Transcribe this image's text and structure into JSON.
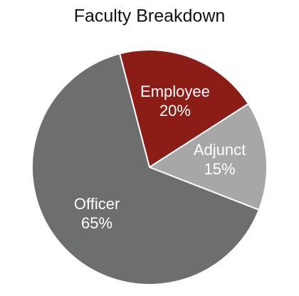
{
  "chart_data": {
    "type": "pie",
    "title": "Faculty Breakdown",
    "categories": [
      "Employee",
      "Adjunct",
      "Officer"
    ],
    "values": [
      20,
      15,
      65
    ],
    "value_labels": [
      "20%",
      "15%",
      "65%"
    ],
    "colors": [
      "#8b1c16",
      "#a7a7a7",
      "#6c6f6d"
    ]
  }
}
